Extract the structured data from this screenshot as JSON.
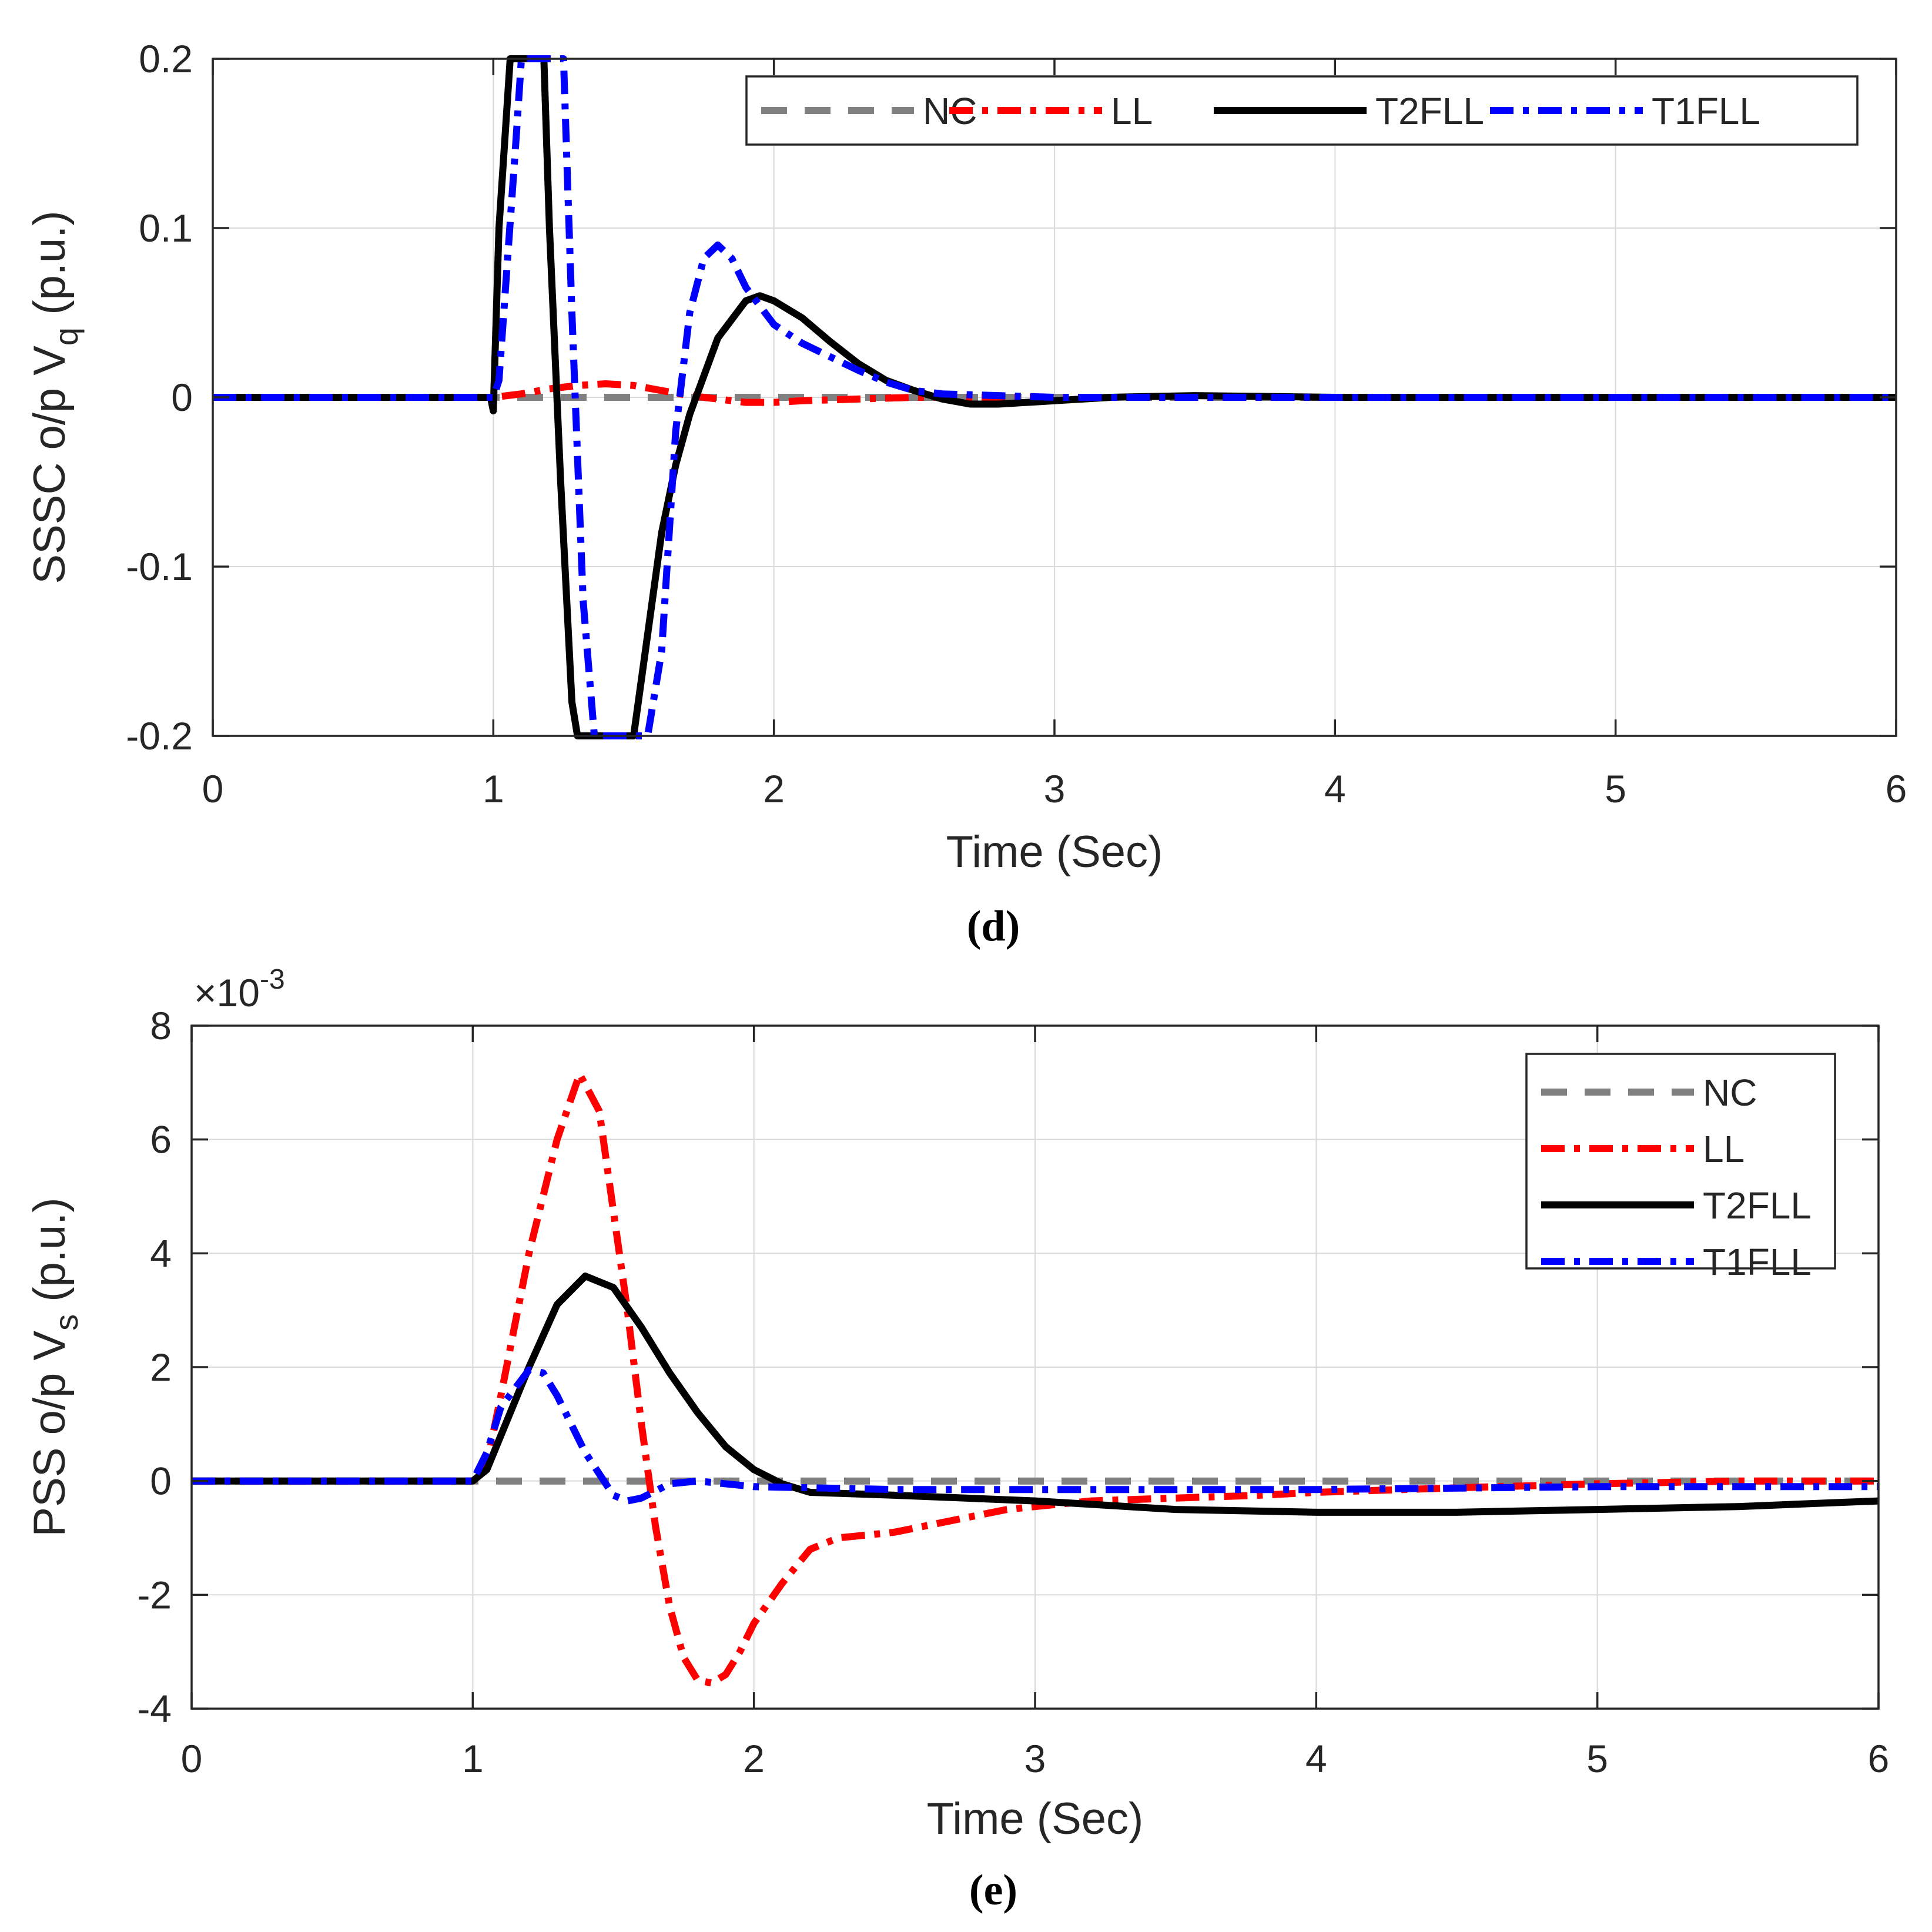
{
  "chart_data": [
    {
      "id": "d",
      "type": "line",
      "caption": "(d)",
      "title": "",
      "xlabel": "Time (Sec)",
      "ylabel_main": "SSSC o/p V",
      "ylabel_sub": "q",
      "ylabel_unit": " (p.u.)",
      "xlim": [
        0,
        6
      ],
      "ylim": [
        -0.2,
        0.2
      ],
      "exponent_label": "",
      "grid": true,
      "legend_position": "top-right",
      "legend_layout": "horizontal",
      "xticks": [
        0,
        1,
        2,
        3,
        4,
        5,
        6
      ],
      "xtick_labels": [
        "0",
        "1",
        "2",
        "3",
        "4",
        "5",
        "6"
      ],
      "yticks": [
        -0.2,
        -0.1,
        0,
        0.1,
        0.2
      ],
      "ytick_labels": [
        "-0.2",
        "-0.1",
        "0",
        "0.1",
        "0.2"
      ],
      "series": [
        {
          "name": "NC",
          "color": "#808080",
          "style": "dash",
          "x": [
            0,
            6
          ],
          "y": [
            0,
            0
          ]
        },
        {
          "name": "LL",
          "color": "#ff0000",
          "style": "dashdot",
          "x": [
            0,
            1.0,
            1.1,
            1.2,
            1.3,
            1.4,
            1.5,
            1.6,
            1.7,
            1.8,
            1.9,
            2.0,
            2.1,
            2.3,
            2.5,
            2.7,
            3.0,
            6
          ],
          "y": [
            0,
            0,
            0.002,
            0.005,
            0.007,
            0.008,
            0.007,
            0.004,
            0.001,
            -0.001,
            -0.003,
            -0.003,
            -0.002,
            -0.001,
            0,
            0,
            0,
            0
          ]
        },
        {
          "name": "T2FLL",
          "color": "#000000",
          "style": "solid",
          "x": [
            0,
            0.99,
            1.0,
            1.02,
            1.06,
            1.18,
            1.2,
            1.24,
            1.28,
            1.3,
            1.35,
            1.5,
            1.55,
            1.6,
            1.65,
            1.7,
            1.8,
            1.9,
            1.95,
            2.0,
            2.1,
            2.2,
            2.3,
            2.4,
            2.5,
            2.6,
            2.7,
            2.8,
            2.9,
            3.0,
            3.2,
            3.5,
            4.0,
            6
          ],
          "y": [
            0,
            0,
            -0.008,
            0.1,
            0.2,
            0.2,
            0.1,
            -0.05,
            -0.18,
            -0.2,
            -0.2,
            -0.2,
            -0.14,
            -0.08,
            -0.04,
            -0.01,
            0.035,
            0.057,
            0.06,
            0.057,
            0.047,
            0.033,
            0.02,
            0.01,
            0.004,
            -0.001,
            -0.004,
            -0.004,
            -0.003,
            -0.002,
            0,
            0.001,
            0,
            0
          ]
        },
        {
          "name": "T1FLL",
          "color": "#0000ff",
          "style": "dashdot",
          "x": [
            0,
            1.0,
            1.02,
            1.08,
            1.1,
            1.25,
            1.28,
            1.32,
            1.36,
            1.4,
            1.55,
            1.6,
            1.65,
            1.7,
            1.75,
            1.8,
            1.85,
            1.9,
            2.0,
            2.1,
            2.2,
            2.3,
            2.4,
            2.5,
            2.6,
            2.8,
            3.0,
            6
          ],
          "y": [
            0,
            0,
            0.01,
            0.15,
            0.2,
            0.2,
            0.05,
            -0.12,
            -0.2,
            -0.2,
            -0.2,
            -0.15,
            -0.02,
            0.05,
            0.082,
            0.09,
            0.082,
            0.065,
            0.043,
            0.032,
            0.024,
            0.016,
            0.009,
            0.004,
            0.002,
            0.001,
            0,
            0
          ]
        }
      ]
    },
    {
      "id": "e",
      "type": "line",
      "caption": "(e)",
      "title": "",
      "xlabel": "Time (Sec)",
      "ylabel_main": "PSS o/p V",
      "ylabel_sub": "s",
      "ylabel_unit": " (p.u.)",
      "xlim": [
        0,
        6
      ],
      "ylim": [
        -4,
        8
      ],
      "exponent_base": "×10",
      "exponent_power": "-3",
      "grid": true,
      "legend_position": "top-right",
      "legend_layout": "vertical",
      "xticks": [
        0,
        1,
        2,
        3,
        4,
        5,
        6
      ],
      "xtick_labels": [
        "0",
        "1",
        "2",
        "3",
        "4",
        "5",
        "6"
      ],
      "yticks": [
        -4,
        -2,
        0,
        2,
        4,
        6,
        8
      ],
      "ytick_labels": [
        "-4",
        "-2",
        "0",
        "2",
        "4",
        "6",
        "8"
      ],
      "series": [
        {
          "name": "NC",
          "color": "#808080",
          "style": "dash",
          "x": [
            0,
            6
          ],
          "y": [
            0,
            0
          ]
        },
        {
          "name": "LL",
          "color": "#ff0000",
          "style": "dashdot",
          "x": [
            0,
            1.0,
            1.05,
            1.1,
            1.2,
            1.3,
            1.38,
            1.45,
            1.55,
            1.6,
            1.65,
            1.7,
            1.75,
            1.8,
            1.85,
            1.9,
            1.95,
            2.0,
            2.1,
            2.2,
            2.3,
            2.5,
            2.7,
            2.9,
            3.0,
            3.2,
            3.5,
            3.8,
            4.0,
            4.5,
            5.0,
            5.5,
            6.0
          ],
          "y": [
            0,
            0,
            0.3,
            1.5,
            4.0,
            6.0,
            7.15,
            6.5,
            3.0,
            1.0,
            -0.8,
            -2.2,
            -3.1,
            -3.5,
            -3.55,
            -3.4,
            -3.0,
            -2.5,
            -1.8,
            -1.2,
            -1.0,
            -0.9,
            -0.7,
            -0.5,
            -0.45,
            -0.35,
            -0.3,
            -0.25,
            -0.2,
            -0.12,
            -0.05,
            0,
            0
          ]
        },
        {
          "name": "T2FLL",
          "color": "#000000",
          "style": "solid",
          "x": [
            0,
            1.0,
            1.05,
            1.1,
            1.2,
            1.3,
            1.4,
            1.5,
            1.6,
            1.7,
            1.8,
            1.9,
            2.0,
            2.1,
            2.2,
            2.5,
            3.0,
            3.5,
            4.0,
            4.5,
            5.0,
            5.5,
            6.0
          ],
          "y": [
            0,
            0,
            0.2,
            0.8,
            2.0,
            3.1,
            3.6,
            3.4,
            2.7,
            1.9,
            1.2,
            0.6,
            0.2,
            -0.05,
            -0.2,
            -0.25,
            -0.35,
            -0.5,
            -0.55,
            -0.55,
            -0.5,
            -0.45,
            -0.35
          ]
        },
        {
          "name": "T1FLL",
          "color": "#0000ff",
          "style": "dashdot",
          "x": [
            0,
            1.0,
            1.05,
            1.1,
            1.2,
            1.25,
            1.3,
            1.4,
            1.5,
            1.55,
            1.6,
            1.7,
            1.8,
            2.0,
            2.5,
            3.0,
            4.0,
            5.0,
            6.0
          ],
          "y": [
            0,
            0,
            0.5,
            1.3,
            1.95,
            1.9,
            1.5,
            0.5,
            -0.25,
            -0.35,
            -0.3,
            -0.05,
            0,
            -0.1,
            -0.15,
            -0.15,
            -0.15,
            -0.1,
            -0.1
          ]
        }
      ]
    }
  ]
}
